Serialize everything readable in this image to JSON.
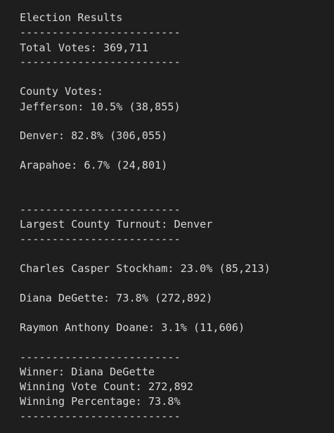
{
  "terminal": {
    "lines": [
      "Election Results",
      "-------------------------",
      "Total Votes: 369,711",
      "-------------------------",
      "County Votes:",
      "Jefferson: 10.5% (38,855)",
      "Denver: 82.8% (306,055)",
      "Arapahoe: 6.7% (24,801)",
      "-------------------------",
      "Largest County Turnout: Denver",
      "-------------------------",
      "Charles Casper Stockham: 23.0% (85,213)",
      "Diana DeGette: 73.8% (272,892)",
      "Raymon Anthony Doane: 3.1% (11,606)",
      "-------------------------",
      "Winner: Diana DeGette",
      "Winning Vote Count: 272,892",
      "Winning Percentage: 73.8%",
      "-------------------------"
    ]
  }
}
